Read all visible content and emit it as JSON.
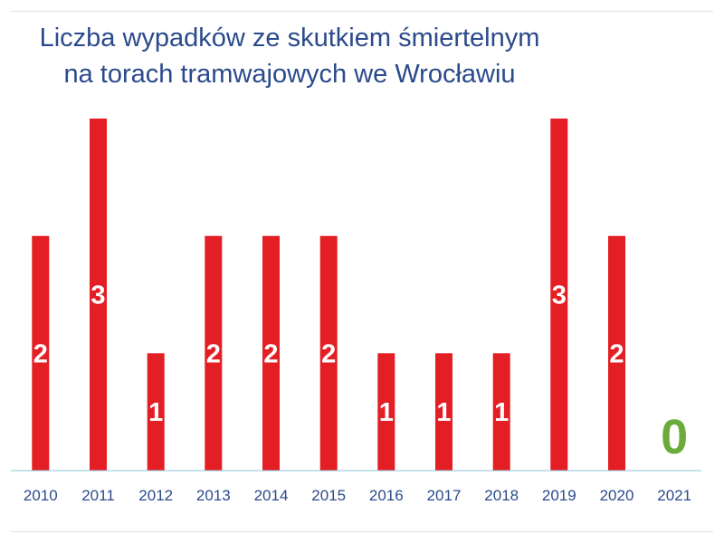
{
  "title_lines": [
    "Liczba wypadków ze skutkiem śmiertelnym",
    "na torach tramwajowych we Wrocławiu"
  ],
  "chart_data": {
    "type": "bar",
    "title": "Liczba wypadków ze skutkiem śmiertelnym na torach tramwajowych we Wrocławiu",
    "categories": [
      "2010",
      "2011",
      "2012",
      "2013",
      "2014",
      "2015",
      "2016",
      "2017",
      "2018",
      "2019",
      "2020",
      "2021"
    ],
    "values": [
      2,
      3,
      1,
      2,
      2,
      2,
      1,
      1,
      1,
      3,
      2,
      0
    ],
    "xlabel": "",
    "ylabel": "",
    "ylim": [
      0,
      3
    ],
    "grid": false,
    "legend": "none",
    "bar_color": "#e31e24",
    "zero_label_color": "#6aab3a",
    "label_color": "#ffffff",
    "axis_color": "#8cc6dc",
    "tick_label_color": "#2b4a8c"
  }
}
